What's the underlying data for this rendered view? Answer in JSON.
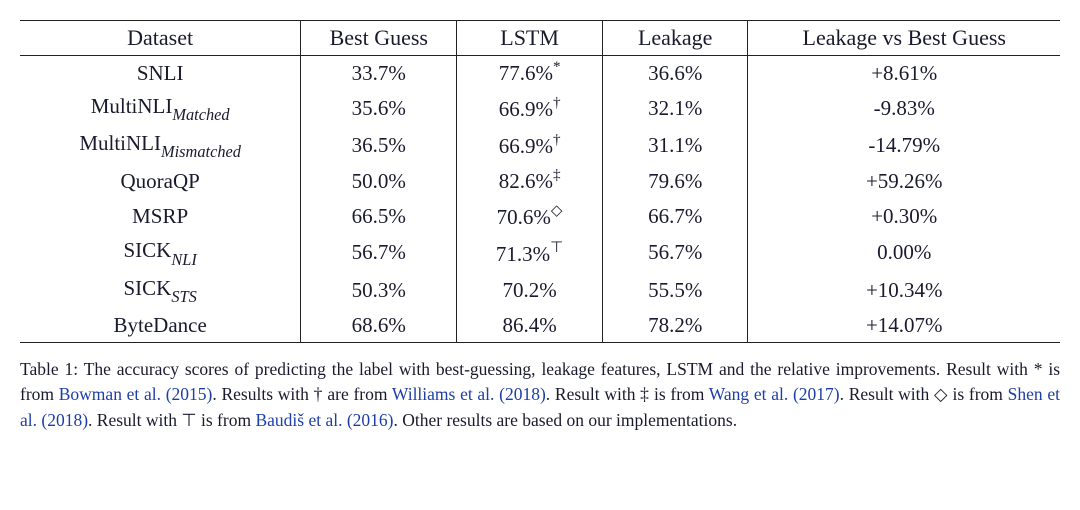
{
  "table": {
    "type": "table",
    "border_color": "#222222",
    "text_color": "#1a1a2e",
    "background_color": "#ffffff",
    "header_fontsize": 22,
    "cell_fontsize": 21,
    "column_widths_percent": [
      27,
      15,
      14,
      14,
      30
    ],
    "alignment": "center",
    "columns": [
      "Dataset",
      "Best Guess",
      "LSTM",
      "Leakage",
      "Leakage vs Best Guess"
    ],
    "rows": [
      {
        "dataset_base": "SNLI",
        "dataset_sub": "",
        "best_guess": "33.7%",
        "lstm_val": "77.6%",
        "lstm_sup": "*",
        "leakage": "36.6%",
        "diff": "+8.61%"
      },
      {
        "dataset_base": "MultiNLI",
        "dataset_sub": "Matched",
        "best_guess": "35.6%",
        "lstm_val": "66.9%",
        "lstm_sup": "†",
        "leakage": "32.1%",
        "diff": "-9.83%"
      },
      {
        "dataset_base": "MultiNLI",
        "dataset_sub": "Mismatched",
        "best_guess": "36.5%",
        "lstm_val": "66.9%",
        "lstm_sup": "†",
        "leakage": "31.1%",
        "diff": "-14.79%"
      },
      {
        "dataset_base": "QuoraQP",
        "dataset_sub": "",
        "best_guess": "50.0%",
        "lstm_val": "82.6%",
        "lstm_sup": "‡",
        "leakage": "79.6%",
        "diff": "+59.26%"
      },
      {
        "dataset_base": "MSRP",
        "dataset_sub": "",
        "best_guess": "66.5%",
        "lstm_val": "70.6%",
        "lstm_sup": "◇",
        "leakage": "66.7%",
        "diff": "+0.30%"
      },
      {
        "dataset_base": "SICK",
        "dataset_sub": "NLI",
        "best_guess": "56.7%",
        "lstm_val": "71.3%",
        "lstm_sup": "⊤",
        "leakage": "56.7%",
        "diff": "0.00%"
      },
      {
        "dataset_base": "SICK",
        "dataset_sub": "STS",
        "best_guess": "50.3%",
        "lstm_val": "70.2%",
        "lstm_sup": "",
        "leakage": "55.5%",
        "diff": "+10.34%"
      },
      {
        "dataset_base": "ByteDance",
        "dataset_sub": "",
        "best_guess": "68.6%",
        "lstm_val": "86.4%",
        "lstm_sup": "",
        "leakage": "78.2%",
        "diff": "+14.07%"
      }
    ]
  },
  "caption": {
    "label": "Table 1:",
    "text_before_c1": "The accuracy scores of predicting the label with best-guessing, leakage features, LSTM and the relative improvements. Result with * is from",
    "cite1": "Bowman et al. (2015)",
    "text_before_c2": ". Results with † are from",
    "cite2": "Williams et al. (2018)",
    "text_before_c3": ". Result with ‡ is from",
    "cite3": "Wang et al. (2017)",
    "text_before_c4": ". Result with ◇ is from",
    "cite4": "Shen et al. (2018)",
    "text_before_c5": ". Result with ⊤ is from",
    "cite5": "Baudiš et al. (2016)",
    "text_after": ". Other results are based on our implementations.",
    "fontsize": 17.5,
    "cite_color": "#1d3ea8",
    "text_color": "#1a1a2e"
  }
}
